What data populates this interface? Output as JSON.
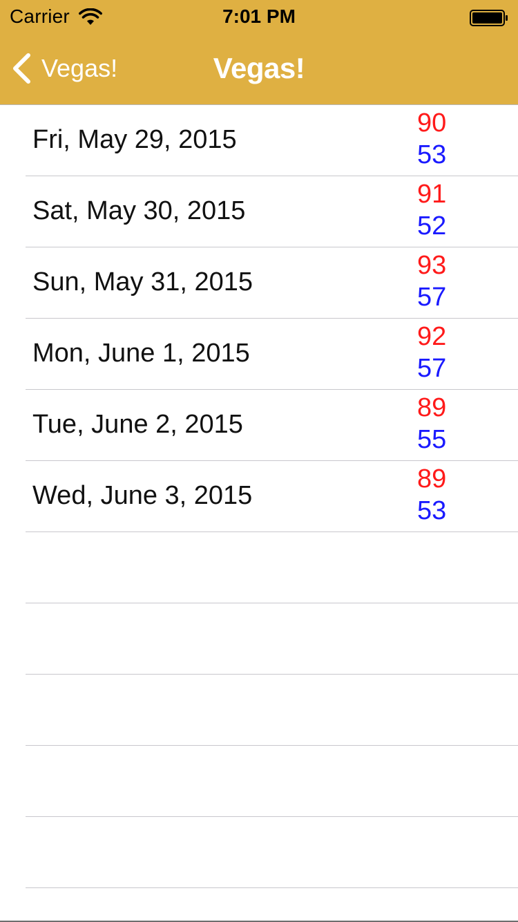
{
  "status_bar": {
    "carrier": "Carrier",
    "time": "7:01 PM",
    "wifi_icon": "wifi-icon",
    "battery_icon": "battery-icon"
  },
  "nav": {
    "back_label": "Vegas!",
    "back_icon": "chevron-left-icon",
    "title": "Vegas!",
    "bar_color": "#dfb042"
  },
  "forecast": [
    {
      "date": "Fri, May 29, 2015",
      "high": "90",
      "low": "53"
    },
    {
      "date": "Sat, May 30, 2015",
      "high": "91",
      "low": "52"
    },
    {
      "date": "Sun, May 31, 2015",
      "high": "93",
      "low": "57"
    },
    {
      "date": "Mon, June 1, 2015",
      "high": "92",
      "low": "57"
    },
    {
      "date": "Tue, June 2, 2015",
      "high": "89",
      "low": "55"
    },
    {
      "date": "Wed, June 3, 2015",
      "high": "89",
      "low": "53"
    }
  ],
  "colors": {
    "high_temp": "#ff1a1a",
    "low_temp": "#1a1aff"
  }
}
